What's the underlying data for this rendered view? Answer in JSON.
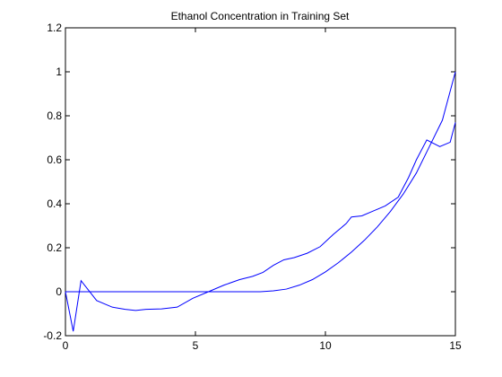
{
  "chart_data": {
    "type": "line",
    "title": "Ethanol Concentration in Training Set",
    "xlabel": "",
    "ylabel": "",
    "xlim": [
      0,
      15
    ],
    "ylim": [
      -0.2,
      1.2
    ],
    "x_ticks": [
      "0",
      "5",
      "10",
      "15"
    ],
    "y_ticks": [
      "-0.2",
      "0",
      "0.2",
      "0.4",
      "0.6",
      "0.8",
      "1",
      "1.2"
    ],
    "grid": false,
    "legend": "none",
    "line_color": "#0000ff",
    "series": [
      {
        "x": [
          0,
          7.5,
          8,
          8.5,
          9,
          9.5,
          10,
          10.5,
          11,
          11.5,
          12,
          12.5,
          13,
          13.5,
          14,
          14.5,
          15
        ],
        "y": [
          0,
          0,
          0.004,
          0.012,
          0.03,
          0.055,
          0.09,
          0.132,
          0.18,
          0.234,
          0.295,
          0.365,
          0.445,
          0.54,
          0.66,
          0.78,
          1.0
        ]
      },
      {
        "x": [
          0,
          0.3,
          0.6,
          1.2,
          1.8,
          2.3,
          2.7,
          3.1,
          3.7,
          4.3,
          4.9,
          5.5,
          6.1,
          6.7,
          7.2,
          7.6,
          8.0,
          8.4,
          8.8,
          9.3,
          9.8,
          10.3,
          10.8,
          11.0,
          11.4,
          11.8,
          12.3,
          12.8,
          13.2,
          13.5,
          13.9,
          14.4,
          14.8,
          15.0
        ],
        "y": [
          0,
          -0.18,
          0.05,
          -0.04,
          -0.07,
          -0.08,
          -0.085,
          -0.08,
          -0.078,
          -0.07,
          -0.03,
          0,
          0.03,
          0.055,
          0.07,
          0.088,
          0.12,
          0.145,
          0.155,
          0.175,
          0.205,
          0.26,
          0.31,
          0.34,
          0.345,
          0.365,
          0.39,
          0.43,
          0.52,
          0.6,
          0.69,
          0.66,
          0.68,
          0.77
        ]
      }
    ]
  }
}
